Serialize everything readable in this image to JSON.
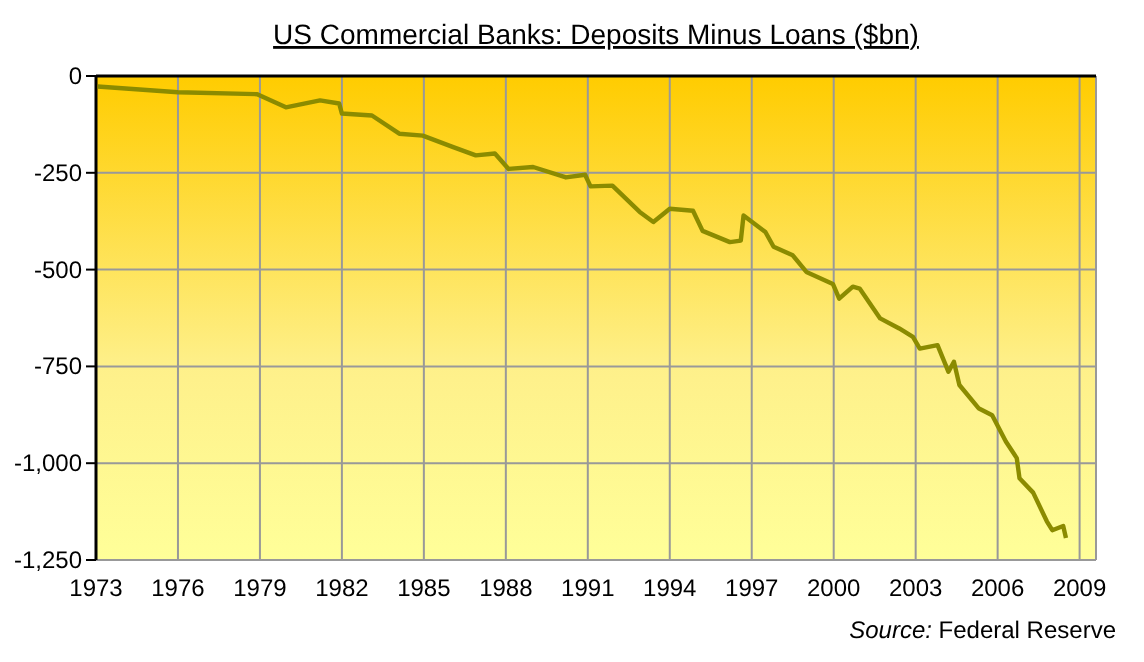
{
  "chart_data": {
    "type": "line",
    "title": "US Commercial Banks: Deposits Minus Loans ($bn)",
    "annotations": [
      "Source: Federal Reserve"
    ],
    "x": [
      1973.06,
      1976.0,
      1978.9,
      1979.95,
      1981.2,
      1981.9,
      1982.0,
      1983.1,
      1984.1,
      1984.96,
      1986.05,
      1986.9,
      1987.6,
      1988.1,
      1989.0,
      1990.2,
      1990.9,
      1991.1,
      1991.9,
      1992.9,
      1993.4,
      1994.0,
      1994.85,
      1995.2,
      1996.2,
      1996.6,
      1996.7,
      1997.5,
      1997.8,
      1998.5,
      1999.0,
      1999.97,
      2000.2,
      2000.7,
      2000.95,
      2001.7,
      2002.4,
      2002.9,
      2003.15,
      2003.8,
      2004.2,
      2004.4,
      2004.6,
      2005.3,
      2005.8,
      2006.3,
      2006.7,
      2006.8,
      2007.3,
      2007.8,
      2008.0,
      2008.4,
      2008.5
    ],
    "series": [
      {
        "color": "#8b8b00",
        "values": [
          -27,
          -42,
          -47,
          -81,
          -63,
          -71,
          -97,
          -102,
          -149,
          -154,
          -183,
          -205,
          -200,
          -240,
          -235,
          -262,
          -255,
          -285,
          -283,
          -351,
          -377,
          -343,
          -348,
          -400,
          -429,
          -425,
          -360,
          -403,
          -441,
          -463,
          -506,
          -537,
          -575,
          -544,
          -549,
          -626,
          -652,
          -674,
          -704,
          -695,
          -764,
          -738,
          -798,
          -858,
          -876,
          -944,
          -987,
          -1039,
          -1076,
          -1150,
          -1173,
          -1162,
          -1193
        ]
      }
    ],
    "xlim": [
      1973,
      2009.6
    ],
    "xticks": [
      1973,
      1976,
      1979,
      1982,
      1985,
      1988,
      1991,
      1994,
      1997,
      2000,
      2003,
      2006,
      2009
    ],
    "ylim": [
      -1250,
      0
    ],
    "yticks": [
      0,
      -250,
      -500,
      -750,
      {
        "value": -1000,
        "label": "-1,000"
      },
      {
        "value": -1250,
        "label": "-1,250"
      }
    ],
    "grid": true,
    "marker": "none",
    "line_style": "solid"
  }
}
